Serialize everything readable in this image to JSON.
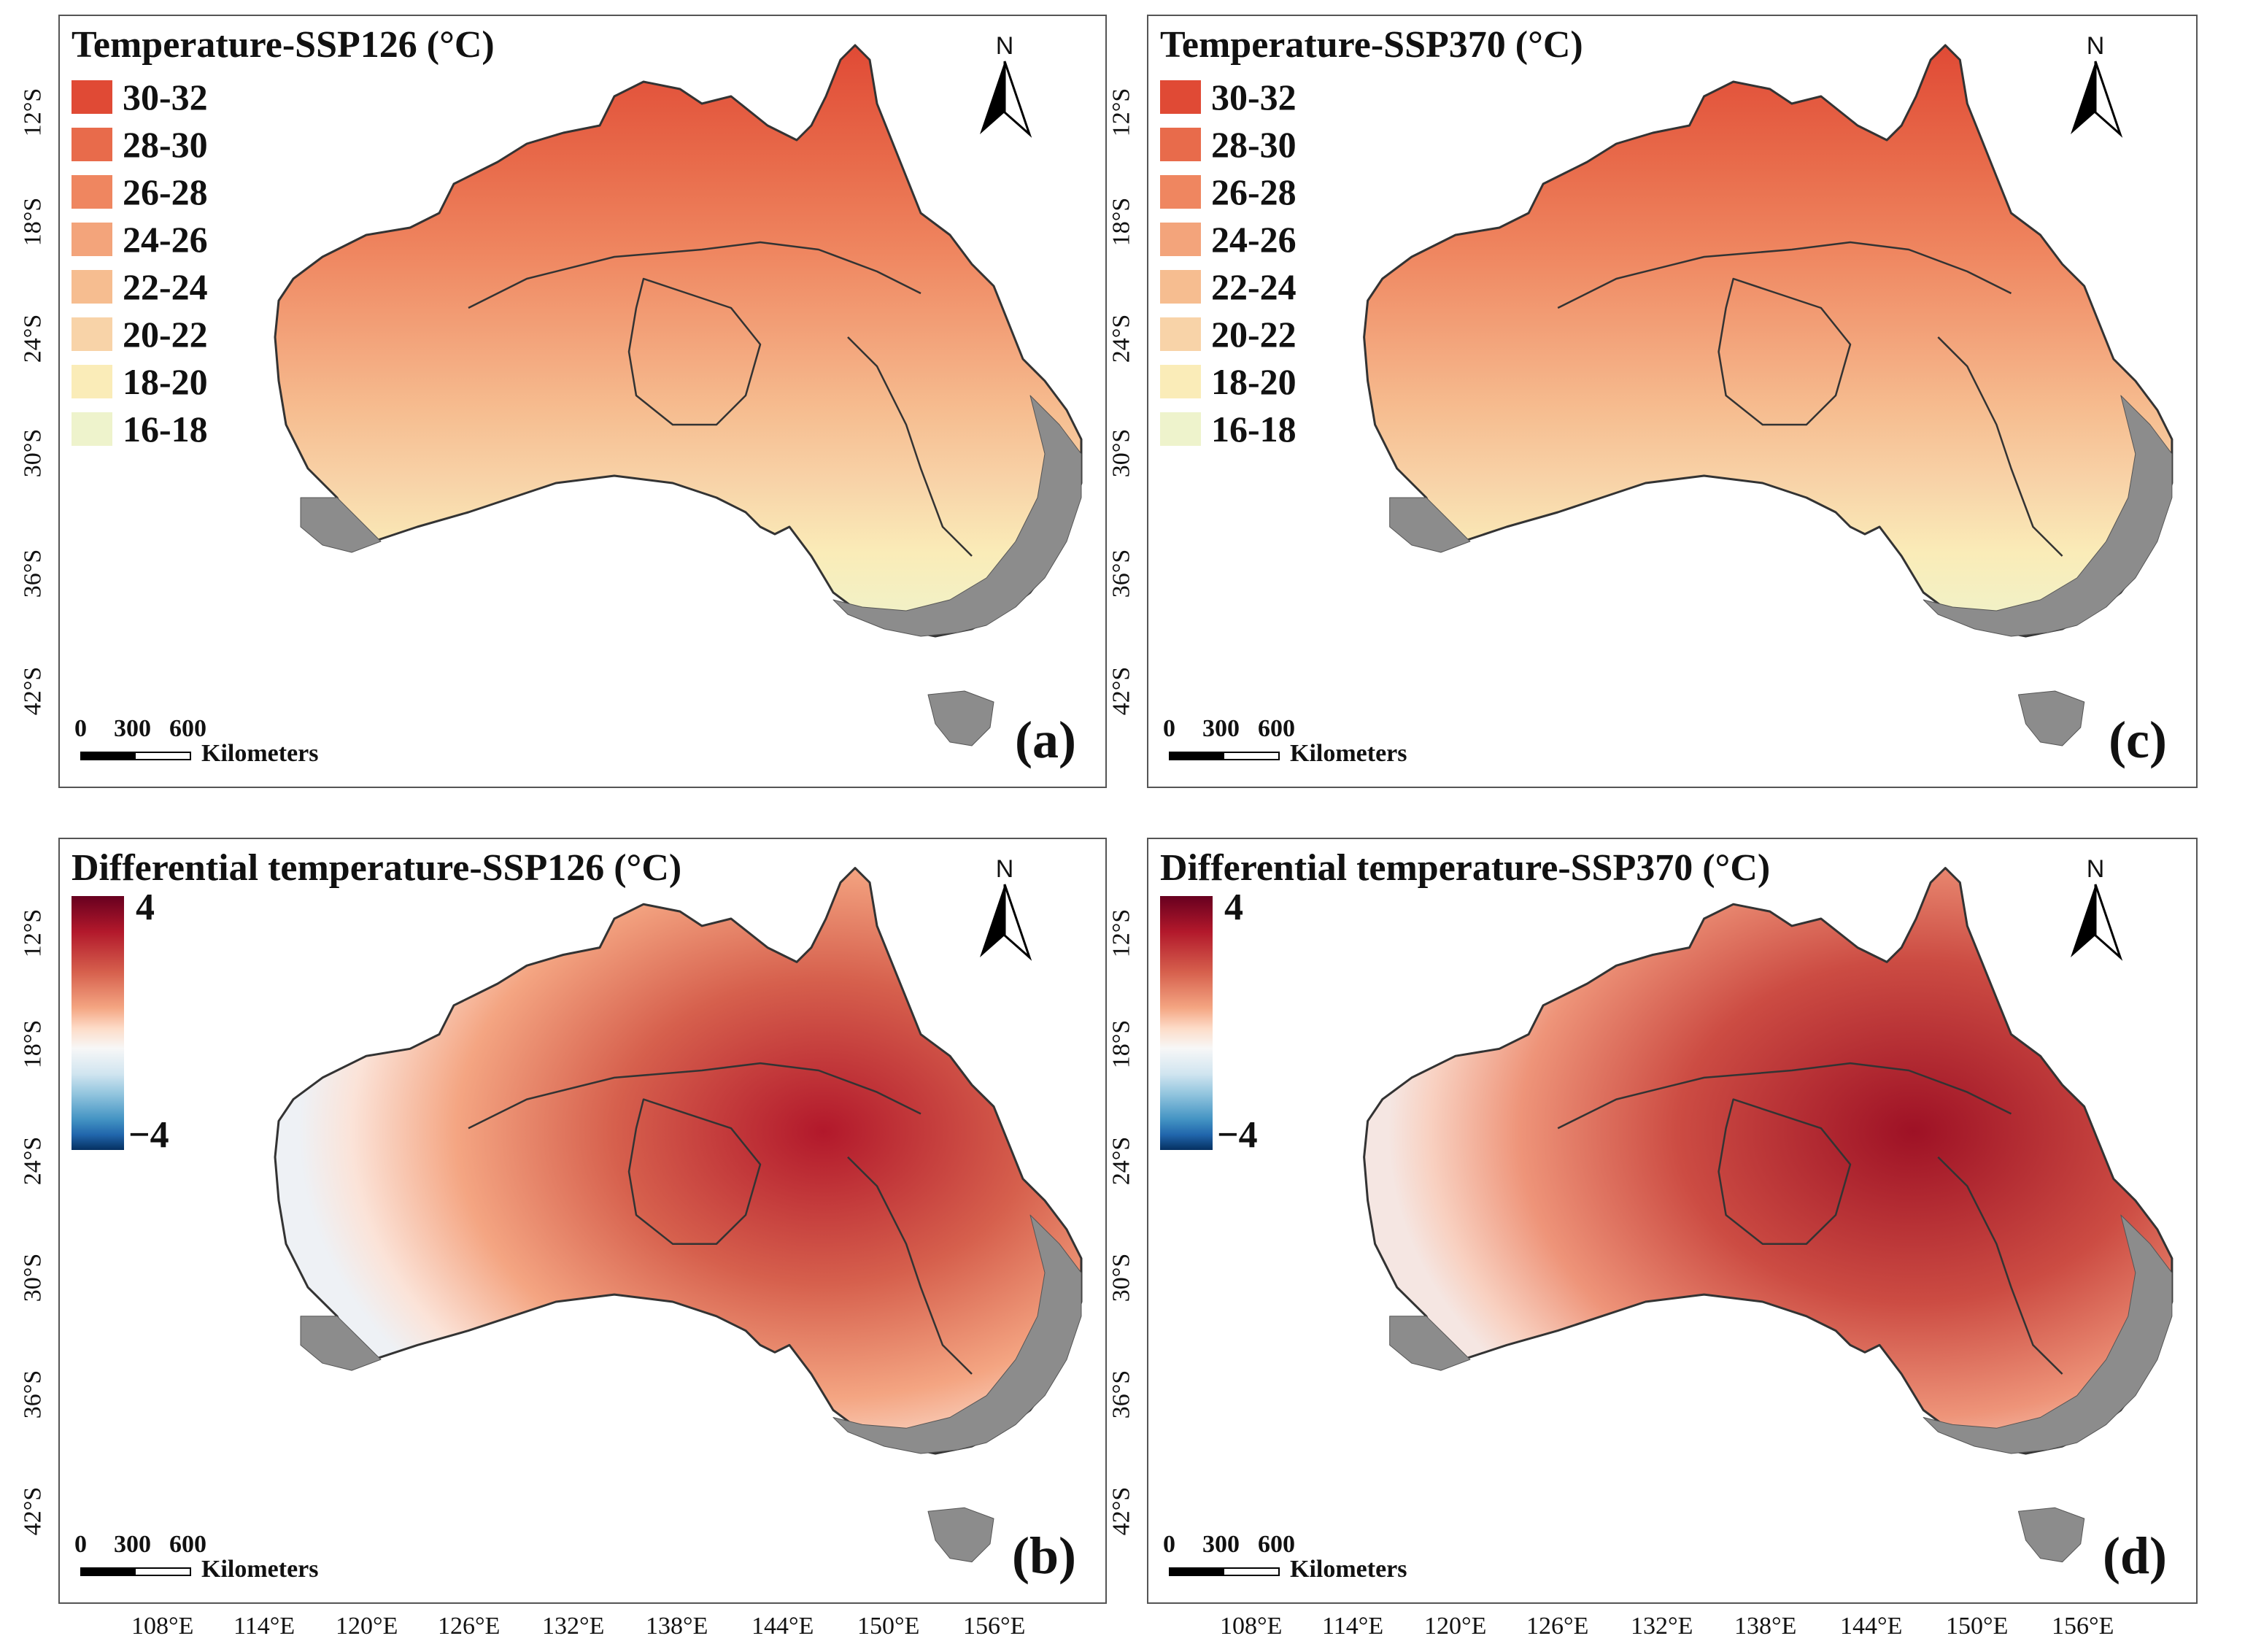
{
  "panels": {
    "a": {
      "title": "Temperature-SSP126 (°C)",
      "label": "(a)"
    },
    "b": {
      "title": "Differential temperature-SSP126 (°C)",
      "label": "(b)"
    },
    "c": {
      "title": "Temperature-SSP370 (°C)",
      "label": "(c)"
    },
    "d": {
      "title": "Differential temperature-SSP370 (°C)",
      "label": "(d)"
    }
  },
  "legend_classes": [
    {
      "label": "30-32",
      "color": "#e04a35"
    },
    {
      "label": "28-30",
      "color": "#e86b4b"
    },
    {
      "label": "26-28",
      "color": "#ef8660"
    },
    {
      "label": "24-26",
      "color": "#f3a47b"
    },
    {
      "label": "22-24",
      "color": "#f6bd90"
    },
    {
      "label": "20-22",
      "color": "#f8d3a8"
    },
    {
      "label": "18-20",
      "color": "#faecb8"
    },
    {
      "label": "16-18",
      "color": "#eef3cc"
    }
  ],
  "colorbar": {
    "max": "4",
    "min": "−4"
  },
  "north_arrow": "N",
  "scale_bar": {
    "ticks": [
      "0",
      "300",
      "600"
    ],
    "unit": "Kilometers"
  },
  "lat_labels": [
    "12°S",
    "18°S",
    "24°S",
    "30°S",
    "36°S",
    "42°S"
  ],
  "lon_labels": [
    "108°E",
    "114°E",
    "120°E",
    "126°E",
    "132°E",
    "138°E",
    "144°E",
    "150°E",
    "156°E"
  ],
  "colors": {
    "terrain": "#8c8c8c",
    "boundary": "#333333"
  }
}
